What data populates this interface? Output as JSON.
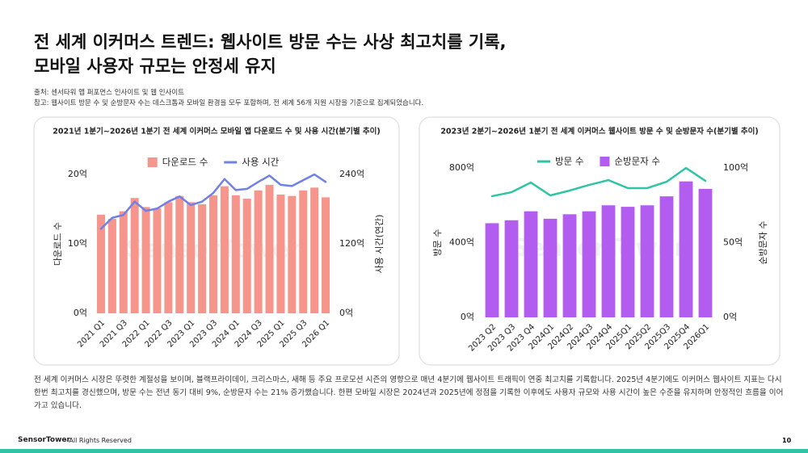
{
  "title": [
    "전 세계 이커머스 트렌드: 웹사이트 방문 수는 사상 최고치를 기록,",
    "모바일 사용자 규모는 안정세 유지"
  ],
  "source": "출처: 센서타워 앱 퍼포먼스 인사이트 및 웹 인사이트",
  "note": "참고: 웹사이트 방문 수 및 순방문자 수는 데스크톱과 모바일 환경을 모두 포함하며, 전 세계 56개 지원 시장을 기준으로 집계되었습니다.",
  "body": "전 세계 이커머스 시장은 뚜렷한 계절성을 보이며, 블랙프라이데이, 크리스마스, 새해 등 주요 프로모션 시즌의 영향으로 매년 4분기에 웹사이트 트래픽이 연중 최고치를 기록합니다. 2025년 4분기에도 이커머스 웹사이트 지표는 다시 한번 최고치를 경신했으며, 방문 수는 전년 동기 대비 9%, 순방문자 수는 21% 증가했습니다. 한편 모바일 시장은 2024년과 2025년에 정점을 기록한 이후에도 사용자 규모와 사용 시간이 높은 수준을 유지하며 안정적인 흐름을 이어가고 있습니다.",
  "footer": {
    "logo": "SensorTower",
    "rights": "- All Rights Reserved",
    "page": 10
  },
  "watermark": "SensorTower",
  "chart_data": [
    {
      "type": "combo",
      "title": "2021년 1분기~2026년 1분기 전 세계 이커머스 모바일 앱 다운로드 수 및 사용 시간(분기별 추이)",
      "categories": [
        "2021 Q1",
        null,
        "2021 Q3",
        null,
        "2022 Q1",
        null,
        "2022 Q3",
        null,
        "2023 Q1",
        null,
        "2023 Q3",
        null,
        "2024 Q1",
        null,
        "2024 Q3",
        null,
        "2025 Q1",
        null,
        "2025 Q3",
        null,
        "2026 Q1"
      ],
      "series": [
        {
          "name": "다운로드 수",
          "type": "bar",
          "color": "#f5958b",
          "values": [
            14.2,
            13.6,
            14.7,
            16.6,
            15.3,
            15.1,
            16.0,
            16.9,
            16.0,
            15.7,
            17.0,
            18.3,
            17.0,
            16.5,
            17.7,
            18.5,
            17.1,
            16.9,
            17.7,
            18.1,
            16.7
          ]
        },
        {
          "name": "사용 시간",
          "type": "line",
          "axis": "y2",
          "color": "#6f80e6",
          "values": [
            146,
            165,
            170,
            193,
            177,
            181,
            193,
            202,
            187,
            193,
            208,
            232,
            213,
            215,
            227,
            238,
            222,
            220,
            230,
            240,
            227
          ]
        }
      ],
      "y_label": "다운로드 수",
      "y2_label": "사용 시간(연간)",
      "ylim": [
        0,
        20
      ],
      "yticks": [
        {
          "value": 0,
          "label": "0억"
        },
        {
          "value": 10,
          "label": "10억"
        },
        {
          "value": 20,
          "label": "20억"
        }
      ],
      "y2lim": [
        0,
        240
      ],
      "y2ticks": [
        {
          "value": 0,
          "label": "0억"
        },
        {
          "value": 120,
          "label": "120억"
        },
        {
          "value": 240,
          "label": "240억"
        }
      ],
      "grid": false
    },
    {
      "type": "combo",
      "title": "2023년 2분기~2026년 1분기 전 세계 이커머스 웹사이트 방문 수 및 순방문자 수(분기별 추이)",
      "categories": [
        "2023 Q2",
        "2023 Q3",
        "2023 Q4",
        "2024Q1",
        "2024Q2",
        "2024Q3",
        "2024Q4",
        "2025Q1",
        "2025Q2",
        "2025Q3",
        "2025Q4",
        "2026Q1"
      ],
      "series": [
        {
          "name": "방문 수",
          "type": "line",
          "color": "#2ec4a5",
          "values": [
            649,
            670,
            722,
            653,
            679,
            709,
            735,
            692,
            692,
            726,
            800,
            731
          ]
        },
        {
          "name": "순방문자 수",
          "type": "bar",
          "axis": "y2",
          "color": "#b25cf0",
          "values": [
            63,
            65,
            71,
            66,
            69,
            71,
            75,
            74,
            75,
            81,
            91,
            86
          ]
        }
      ],
      "y_label": "방문 수",
      "y2_label": "순방문자 수",
      "ylim": [
        0,
        800
      ],
      "yticks": [
        {
          "value": 0,
          "label": "0억"
        },
        {
          "value": 400,
          "label": "400억"
        },
        {
          "value": 800,
          "label": "800억"
        }
      ],
      "y2lim": [
        0,
        100
      ],
      "y2ticks": [
        {
          "value": 0,
          "label": "0억"
        },
        {
          "value": 50,
          "label": "50억"
        },
        {
          "value": 100,
          "label": "100억"
        }
      ],
      "grid": false
    }
  ]
}
